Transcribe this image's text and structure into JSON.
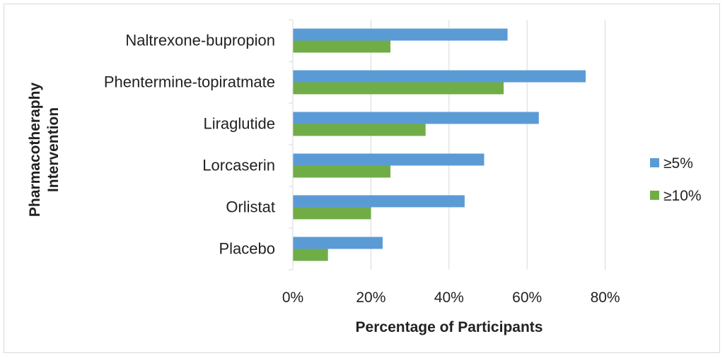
{
  "chart_data": {
    "type": "bar",
    "orientation": "horizontal",
    "categories": [
      "Naltrexone-bupropion",
      "Phentermine-topiratmate",
      "Liraglutide",
      "Lorcaserin",
      "Orlistat",
      "Placebo"
    ],
    "series": [
      {
        "name": "≥5%",
        "color": "#5b9bd5",
        "values": [
          55,
          75,
          63,
          49,
          44,
          23
        ]
      },
      {
        "name": "≥10%",
        "color": "#70ad47",
        "values": [
          25,
          54,
          34,
          25,
          20,
          9
        ]
      }
    ],
    "xlabel": "Percentage of Participants",
    "ylabel_lines": [
      "Pharmacotheraphy",
      "Intervention"
    ],
    "xlim": [
      0,
      80
    ],
    "xticks": [
      "0%",
      "20%",
      "40%",
      "60%",
      "80%"
    ],
    "grid": true,
    "legend_position": "right"
  }
}
